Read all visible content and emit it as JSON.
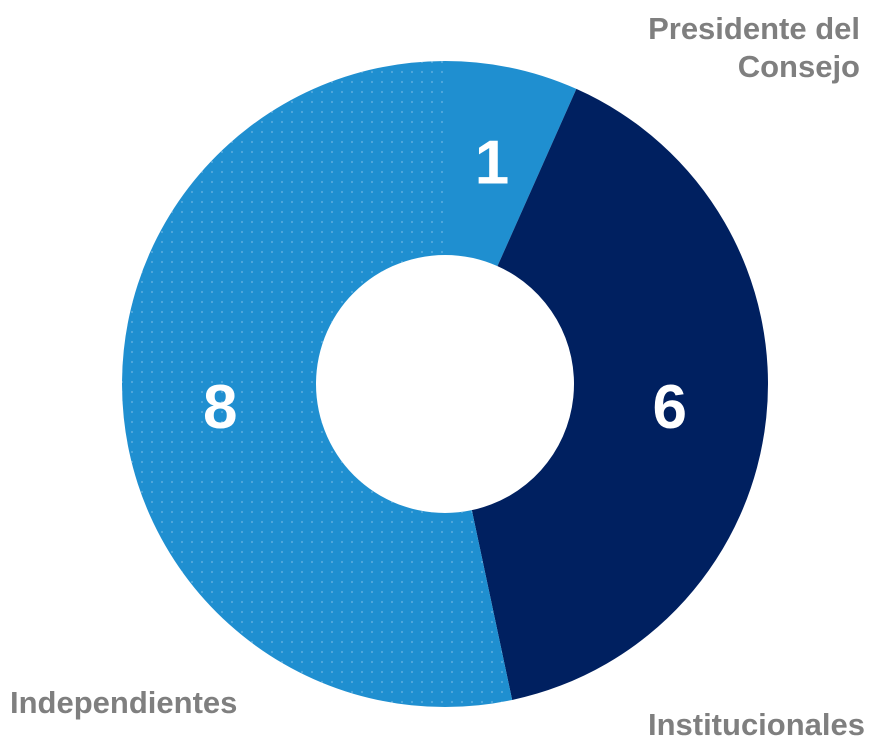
{
  "chart_data": {
    "type": "donut",
    "categories": [
      "Presidente del Consejo",
      "Institucionales",
      "Independientes"
    ],
    "values": [
      1,
      6,
      8
    ],
    "colors": [
      "#1f8fd0",
      "#002060",
      "#1f8fd0"
    ]
  }
}
